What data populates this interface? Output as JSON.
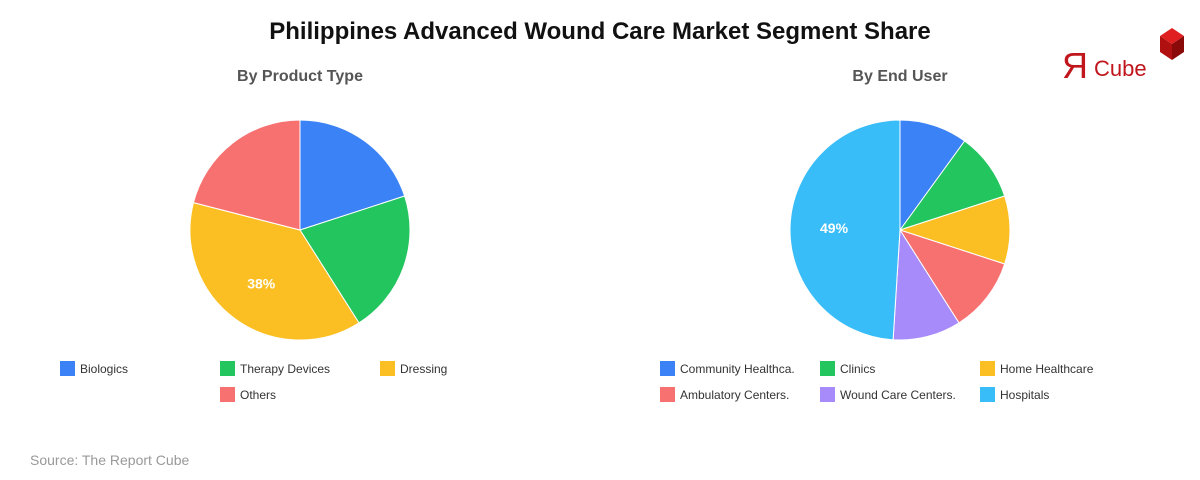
{
  "title": "Philippines Advanced Wound Care Market Segment Share",
  "source": "Source: The Report Cube",
  "logo": {
    "text_r": "Я",
    "text_cube": "Cube"
  },
  "chart_data": [
    {
      "type": "pie",
      "title": "By Product Type",
      "categories": [
        "Biologics",
        "Therapy Devices",
        "Dressing",
        "Others"
      ],
      "values": [
        20,
        21,
        38,
        21
      ],
      "colors": [
        "#3b82f6",
        "#22c55e",
        "#fbbf24",
        "#f87171"
      ],
      "data_labels": {
        "Dressing": "38%"
      },
      "legend_position": "bottom"
    },
    {
      "type": "pie",
      "title": "By End User",
      "categories": [
        "Community Healthca.",
        "Clinics",
        "Home Healthcare",
        "Ambulatory Centers.",
        "Wound Care Centers.",
        "Hospitals"
      ],
      "values": [
        10,
        10,
        10,
        11,
        10,
        49
      ],
      "colors": [
        "#3b82f6",
        "#22c55e",
        "#fbbf24",
        "#f87171",
        "#a78bfa",
        "#38bdf8"
      ],
      "data_labels": {
        "Hospitals": "49%"
      },
      "legend_position": "bottom"
    }
  ]
}
